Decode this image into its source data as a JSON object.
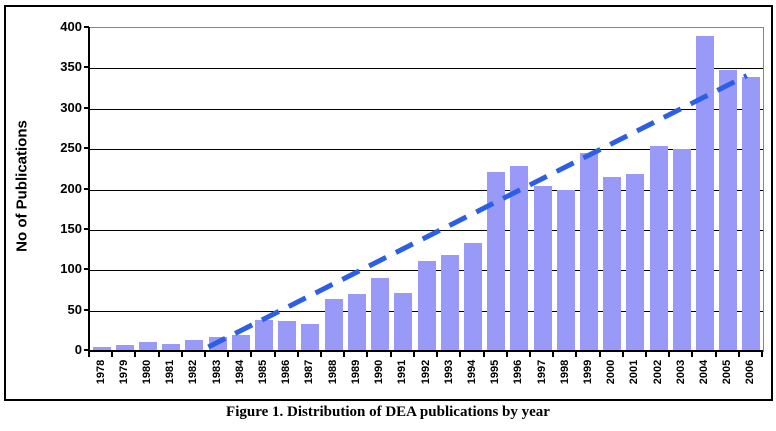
{
  "figure": {
    "caption": "Figure 1. Distribution of DEA publications by year"
  },
  "chart_data": {
    "type": "bar",
    "title": "",
    "xlabel": "",
    "ylabel": "No of Publications",
    "ylim": [
      0,
      400
    ],
    "ytick_step": 50,
    "grid": true,
    "legend": "none",
    "categories": [
      "1978",
      "1979",
      "1980",
      "1981",
      "1982",
      "1983",
      "1984",
      "1985",
      "1986",
      "1987",
      "1988",
      "1989",
      "1990",
      "1991",
      "1992",
      "1993",
      "1994",
      "1995",
      "1996",
      "1997",
      "1998",
      "1999",
      "2000",
      "2001",
      "2002",
      "2003",
      "2004",
      "2005",
      "2006"
    ],
    "values": [
      5,
      8,
      11,
      9,
      14,
      17,
      20,
      38,
      37,
      33,
      64,
      70,
      91,
      72,
      112,
      119,
      134,
      222,
      229,
      204,
      199,
      245,
      215,
      219,
      254,
      250,
      390,
      348,
      339
    ],
    "bar_color": "#9999F8",
    "gridline_color": "#000000",
    "plot_border_color": "#848484",
    "axis_color": "#000000",
    "trendline": {
      "style": "dashed",
      "color": "#2C5FE6",
      "start": {
        "year": 1982.6,
        "value": 5
      },
      "end": {
        "year": 2005.8,
        "value": 341
      }
    }
  }
}
